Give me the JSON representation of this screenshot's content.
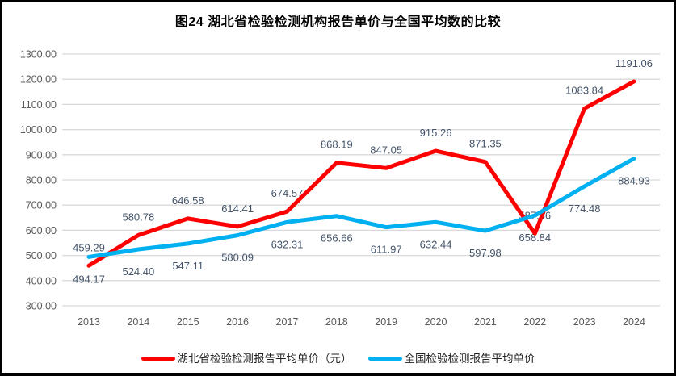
{
  "title": "图24 湖北省检验检测机构报告单价与全国平均数的比较",
  "chart_data": {
    "type": "line",
    "categories": [
      "2013",
      "2014",
      "2015",
      "2016",
      "2017",
      "2018",
      "2019",
      "2020",
      "2021",
      "2022",
      "2023",
      "2024"
    ],
    "series": [
      {
        "name": "湖北省检验检测报告平均单价（元）",
        "color": "#FF0000",
        "label_side": "above",
        "values": [
          459.29,
          580.78,
          646.58,
          614.41,
          674.57,
          868.19,
          847.05,
          915.26,
          871.35,
          587.46,
          1083.84,
          1191.06
        ]
      },
      {
        "name": "全国检验检测报告平均单价",
        "color": "#00B0F0",
        "label_side": "below",
        "values": [
          494.17,
          524.4,
          547.11,
          580.09,
          632.31,
          656.66,
          611.97,
          632.44,
          597.98,
          658.84,
          774.48,
          884.93
        ]
      }
    ],
    "ylim": [
      300,
      1300
    ],
    "ytick_step": 100,
    "ytick_decimals": 2,
    "grid": true,
    "legend_position": "bottom",
    "colors": {
      "gridline": "#D9D9D9",
      "axis_text": "#595959",
      "data_label_text": "#44546A"
    }
  }
}
